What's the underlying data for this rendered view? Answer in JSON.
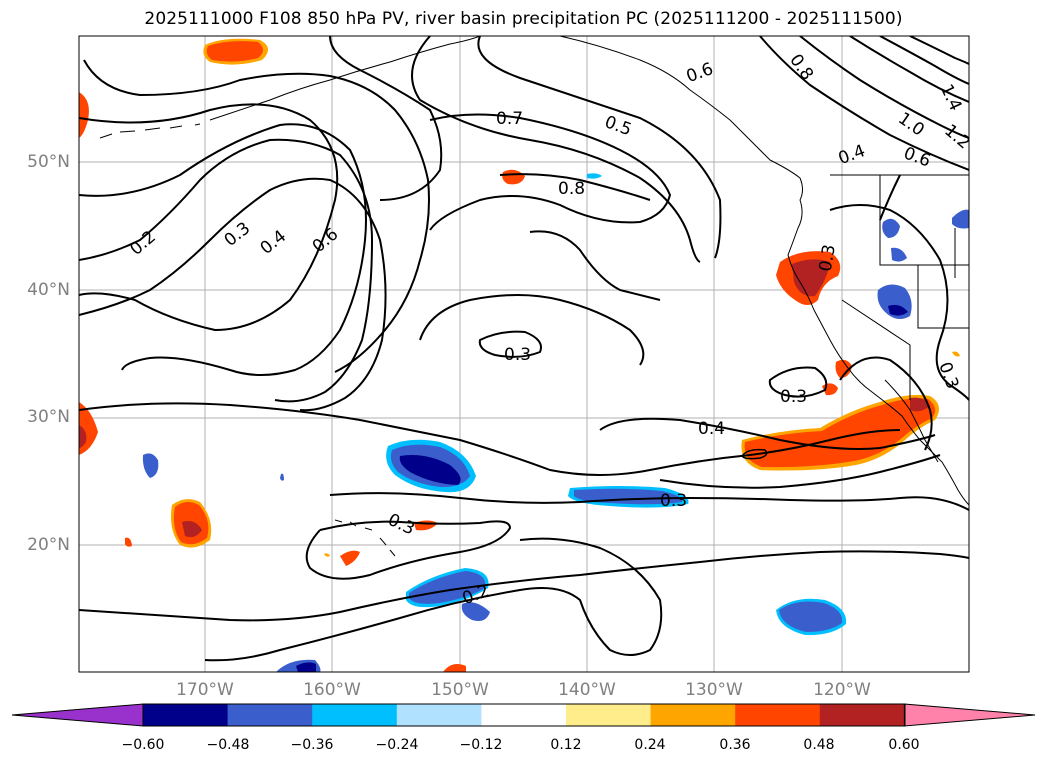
{
  "title": "2025111000 F108 850 hPa PV, river basin precipitation PC (2025111200 - 2025111500)",
  "lat_labels": [
    "50°N",
    "40°N",
    "30°N",
    "20°N"
  ],
  "lon_labels": [
    "170°W",
    "160°W",
    "150°W",
    "140°W",
    "130°W",
    "120°W"
  ],
  "contour_labels": [
    "0.2",
    "0.3",
    "0.4",
    "0.6",
    "0.7",
    "0.5",
    "0.8",
    "0.6",
    "0.8",
    "1.4",
    "1.0",
    "1.2",
    "0.4",
    "0.6",
    "0.3",
    "0.3",
    "0.3",
    "0.4",
    "0.3",
    "0.3",
    "0.3",
    "0.2"
  ],
  "colorbar": {
    "ticks": [
      "−0.60",
      "−0.48",
      "−0.36",
      "−0.24",
      "−0.12",
      "0.12",
      "0.24",
      "0.36",
      "0.48",
      "0.60"
    ],
    "colors": [
      "#9932cc",
      "#00008b",
      "#3a5fcd",
      "#00bfff",
      "#b0e2ff",
      "#ffffff",
      "#ffec8b",
      "#ffa500",
      "#ff4500",
      "#b22222",
      "#ff82ab"
    ]
  },
  "colors": {
    "grid": "#b0b0b0",
    "contour": "#000000",
    "axis_label": "#808080"
  }
}
